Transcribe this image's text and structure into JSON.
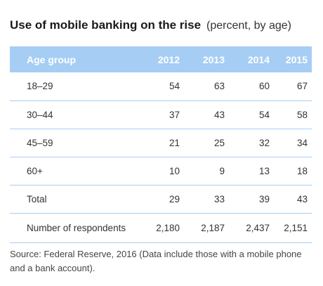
{
  "title": "Use of mobile banking on the rise",
  "subtitle": "(percent, by age)",
  "header_color": "#a6cdf4",
  "chart_data": {
    "type": "table",
    "title": "Use of mobile banking on the rise",
    "subtitle": "(percent, by age)",
    "columns": [
      "Age group",
      "2012",
      "2013",
      "2014",
      "2015"
    ],
    "rows": [
      {
        "label": "18–29",
        "values": [
          "54",
          "63",
          "60",
          "67"
        ]
      },
      {
        "label": "30–44",
        "values": [
          "37",
          "43",
          "54",
          "58"
        ]
      },
      {
        "label": "45–59",
        "values": [
          "21",
          "25",
          "32",
          "34"
        ]
      },
      {
        "label": "60+",
        "values": [
          "10",
          "9",
          "13",
          "18"
        ]
      },
      {
        "label": "Total",
        "values": [
          "29",
          "33",
          "39",
          "43"
        ]
      },
      {
        "label": "Number of respondents",
        "values": [
          "2,180",
          "2,187",
          "2,437",
          "2,151"
        ]
      }
    ]
  },
  "source": "Source: Federal Reserve, 2016 (Data include those with a mobile phone and a bank account)."
}
